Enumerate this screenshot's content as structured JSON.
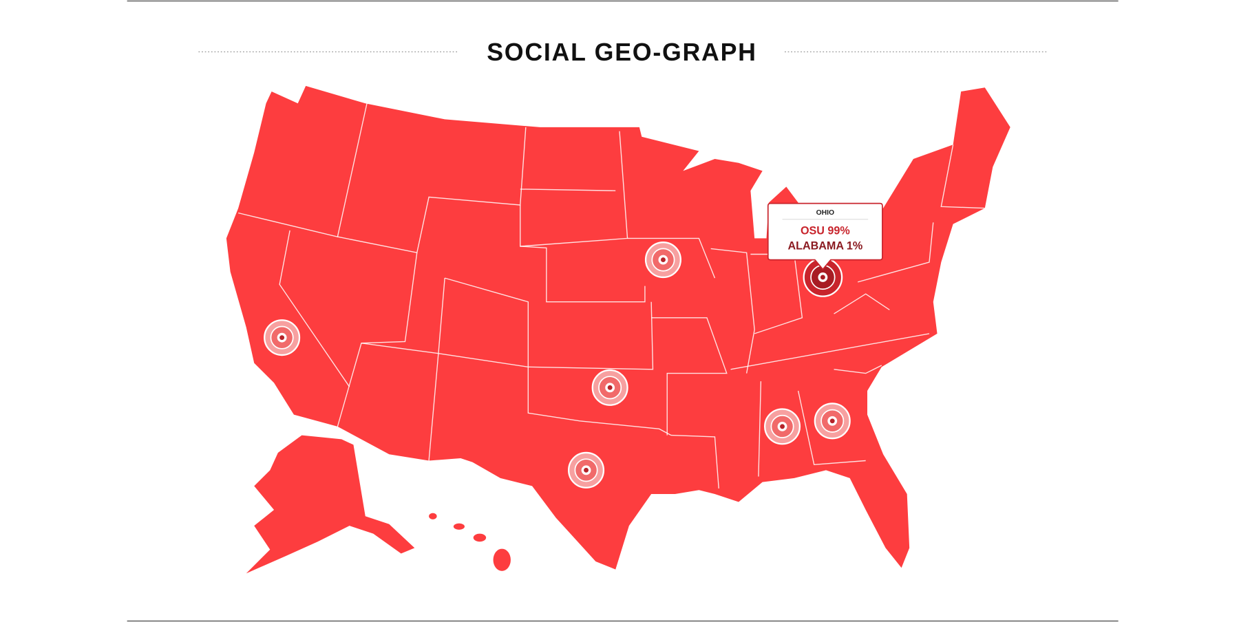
{
  "header": {
    "title": "SOCIAL GEO-GRAPH"
  },
  "tooltip": {
    "state": "OHIO",
    "lines": [
      "OSU 99%",
      "ALABAMA 1%"
    ]
  }
}
